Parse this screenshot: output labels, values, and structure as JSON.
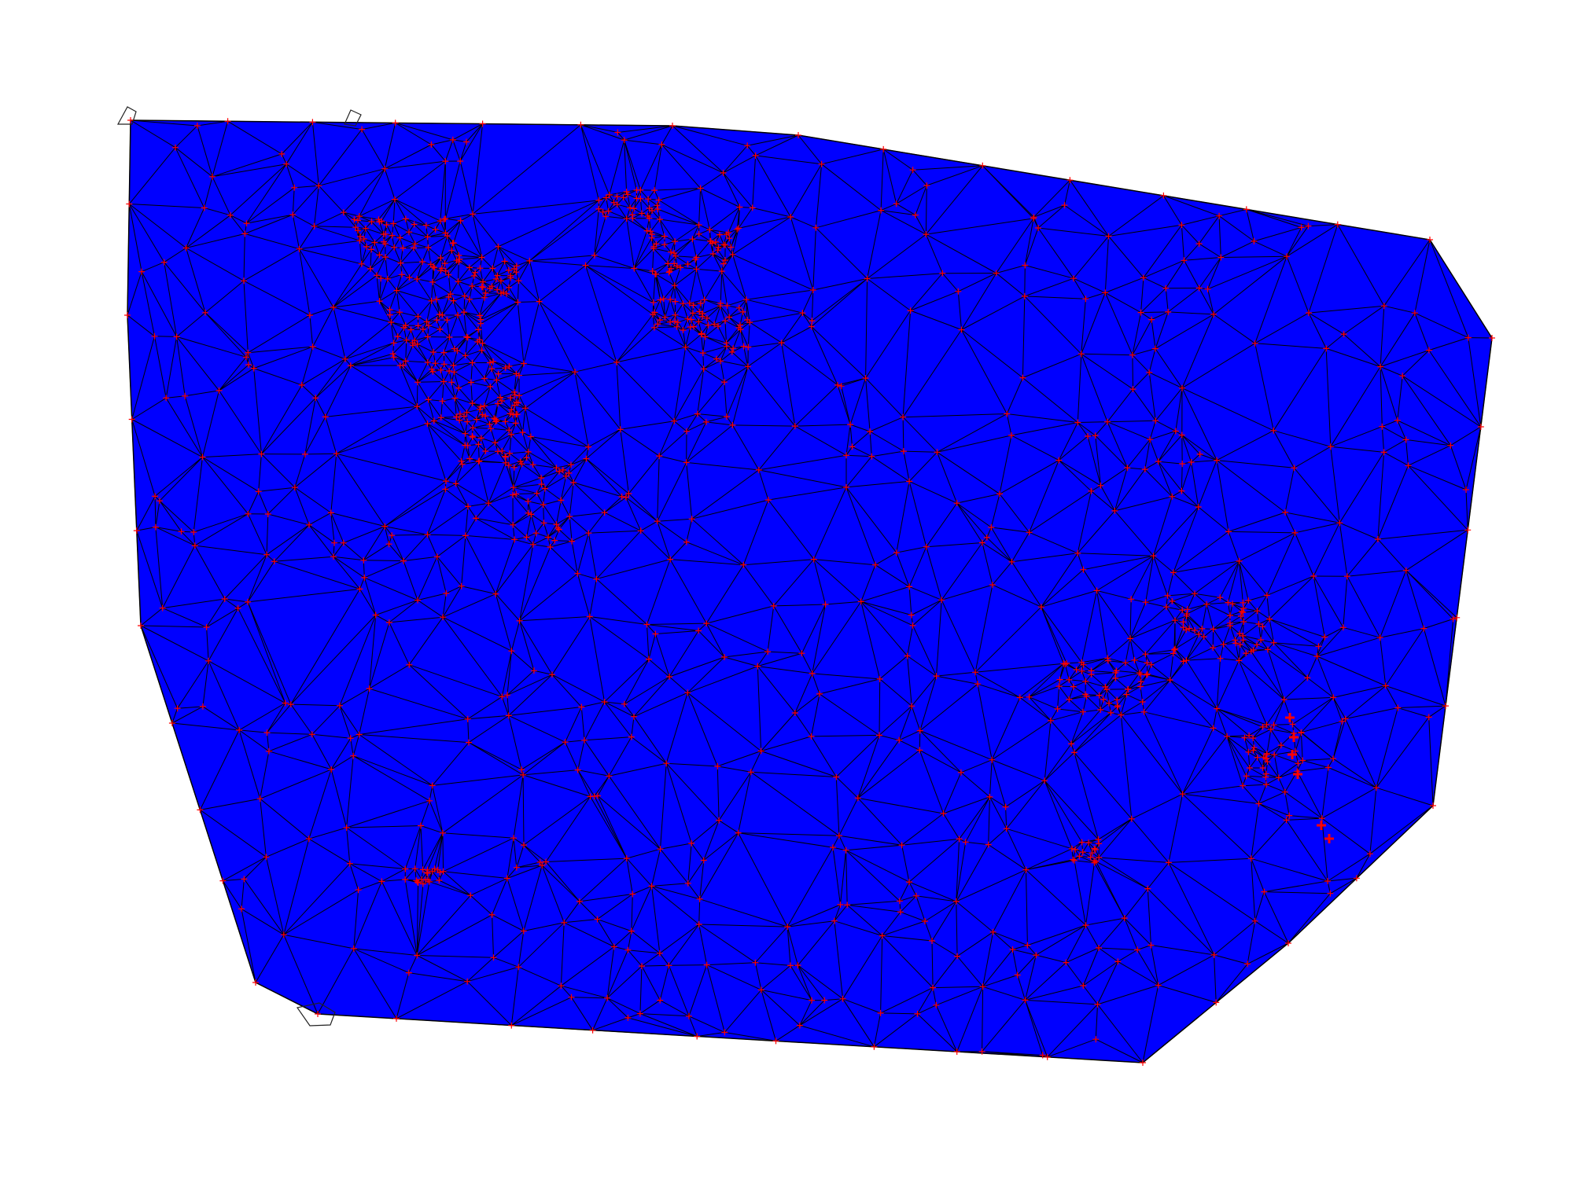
{
  "figure": {
    "type": "delaunay-triangulation-mesh",
    "background": "#ffffff",
    "fill_color": "#0000ff",
    "edge_color": "#000000",
    "vertex_marker_color": "#ff0000",
    "vertex_marker_symbol": "+",
    "axes_visible": false,
    "title": "",
    "legend": "none"
  }
}
